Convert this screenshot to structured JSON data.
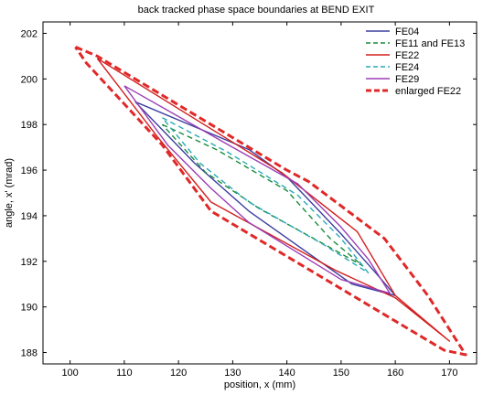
{
  "chart_data": {
    "type": "line",
    "title": "back tracked phase space boundaries at BEND EXIT",
    "xlabel": "position, x (mm)",
    "ylabel": "angle, x' (mrad)",
    "xlim": [
      95,
      175
    ],
    "ylim": [
      187.5,
      202.5
    ],
    "xticks": [
      100,
      110,
      120,
      130,
      140,
      150,
      160,
      170
    ],
    "yticks": [
      188,
      190,
      192,
      194,
      196,
      198,
      200,
      202
    ],
    "grid": false,
    "legend_position": "top-right",
    "series": [
      {
        "name": "FE04",
        "color": "#3b3f9e",
        "dash": "solid",
        "x": [
          112,
          133,
          140,
          150,
          156,
          160,
          152,
          133,
          123,
          112
        ],
        "y": [
          199.0,
          196.9,
          195.7,
          193.2,
          191.6,
          190.5,
          191.0,
          194.2,
          196.3,
          199.0
        ]
      },
      {
        "name": "FE11 and FE13",
        "color": "#1a8a3a",
        "dash": "dashed",
        "x": [
          117,
          127,
          140,
          148,
          154,
          148,
          135,
          125,
          117
        ],
        "y": [
          198.0,
          196.9,
          195.1,
          193.0,
          191.8,
          192.6,
          194.3,
          195.9,
          198.0
        ]
      },
      {
        "name": "FE22",
        "color": "#d32020",
        "dash": "solid",
        "x": [
          105,
          139,
          153,
          160,
          170,
          160,
          149,
          126,
          116,
          105
        ],
        "y": [
          200.9,
          195.9,
          193.3,
          190.5,
          188.5,
          190.4,
          191.6,
          194.6,
          197.5,
          200.9
        ]
      },
      {
        "name": "FE24",
        "color": "#2aa8b8",
        "dash": "dashed",
        "x": [
          117,
          129,
          142,
          150,
          155,
          147,
          133,
          124,
          117
        ],
        "y": [
          198.3,
          196.8,
          194.9,
          193.0,
          191.5,
          192.7,
          194.6,
          196.3,
          198.3
        ]
      },
      {
        "name": "FE29",
        "color": "#9b3fb5",
        "dash": "solid",
        "x": [
          110,
          130,
          142,
          150,
          155,
          159,
          150,
          133,
          126,
          118,
          110
        ],
        "y": [
          199.7,
          197.0,
          195.4,
          193.5,
          192.1,
          190.6,
          191.2,
          193.7,
          195.2,
          197.1,
          199.7
        ]
      },
      {
        "name": "enlarged FE22",
        "color": "#e02828",
        "dash": "thick-dashed",
        "x": [
          101,
          105,
          140,
          144,
          158,
          166,
          173,
          169,
          126,
          117,
          103,
          101
        ],
        "y": [
          201.4,
          201.0,
          196.0,
          195.5,
          193.0,
          190.5,
          187.9,
          188.1,
          194.2,
          197.1,
          200.7,
          201.4
        ]
      }
    ]
  }
}
